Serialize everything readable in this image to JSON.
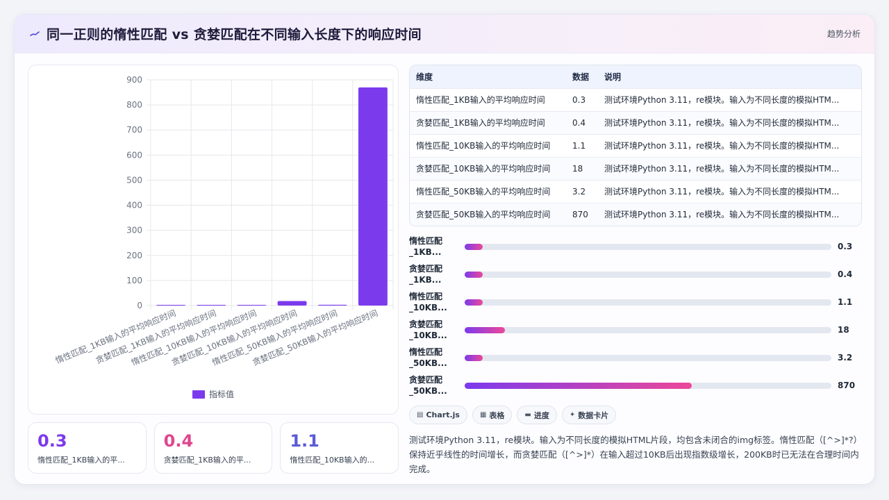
{
  "header": {
    "title": "同一正则的惰性匹配 vs 贪婪匹配在不同输入长度下的响应时间",
    "tag": "趋势分析"
  },
  "colors": {
    "bar": "#7c3aed",
    "accent_purple": "#7c3aed",
    "accent_pink": "#e0468f",
    "accent_indigo": "#5b5bd6"
  },
  "chart_data": {
    "type": "bar",
    "categories": [
      "惰性匹配_1KB输入的平均响应时间",
      "贪婪匹配_1KB输入的平均响应时间",
      "惰性匹配_10KB输入的平均响应时间",
      "贪婪匹配_10KB输入的平均响应时间",
      "惰性匹配_50KB输入的平均响应时间",
      "贪婪匹配_50KB输入的平均响应时间"
    ],
    "series": [
      {
        "name": "指标值",
        "values": [
          0.3,
          0.4,
          1.1,
          18,
          3.2,
          870
        ]
      }
    ],
    "ylim": [
      0,
      900
    ],
    "yticks": [
      0,
      100,
      200,
      300,
      400,
      500,
      600,
      700,
      800,
      900
    ],
    "grid": true,
    "legend": "bottom"
  },
  "table": {
    "headers": [
      "维度",
      "数据",
      "说明"
    ],
    "rows": [
      [
        "惰性匹配_1KB输入的平均响应时间",
        "0.3",
        "测试环境Python 3.11，re模块。输入为不同长度的模拟HTM..."
      ],
      [
        "贪婪匹配_1KB输入的平均响应时间",
        "0.4",
        "测试环境Python 3.11，re模块。输入为不同长度的模拟HTM..."
      ],
      [
        "惰性匹配_10KB输入的平均响应时间",
        "1.1",
        "测试环境Python 3.11，re模块。输入为不同长度的模拟HTM..."
      ],
      [
        "贪婪匹配_10KB输入的平均响应时间",
        "18",
        "测试环境Python 3.11，re模块。输入为不同长度的模拟HTM..."
      ],
      [
        "惰性匹配_50KB输入的平均响应时间",
        "3.2",
        "测试环境Python 3.11，re模块。输入为不同长度的模拟HTM..."
      ],
      [
        "贪婪匹配_50KB输入的平均响应时间",
        "870",
        "测试环境Python 3.11，re模块。输入为不同长度的模拟HTM..."
      ]
    ]
  },
  "progress": [
    {
      "label": "惰性匹配_1KB...",
      "value": "0.3",
      "fraction": 0.05
    },
    {
      "label": "贪婪匹配_1KB...",
      "value": "0.4",
      "fraction": 0.05
    },
    {
      "label": "惰性匹配_10KB...",
      "value": "1.1",
      "fraction": 0.05
    },
    {
      "label": "贪婪匹配_10KB...",
      "value": "18",
      "fraction": 0.11
    },
    {
      "label": "惰性匹配_50KB...",
      "value": "3.2",
      "fraction": 0.05
    },
    {
      "label": "贪婪匹配_50KB...",
      "value": "870",
      "fraction": 0.62
    }
  ],
  "kpis": [
    {
      "value": "0.3",
      "label": "惰性匹配_1KB输入的平...",
      "color": "#7c3aed"
    },
    {
      "value": "0.4",
      "label": "贪婪匹配_1KB输入的平...",
      "color": "#e0468f"
    },
    {
      "value": "1.1",
      "label": "惰性匹配_10KB输入的...",
      "color": "#5b5bd6"
    }
  ],
  "chips": [
    {
      "icon": "chart-icon",
      "glyph": "▤",
      "label": "Chart.js"
    },
    {
      "icon": "table-icon",
      "glyph": "▦",
      "label": "表格"
    },
    {
      "icon": "progress-icon",
      "glyph": "▬",
      "label": "进度"
    },
    {
      "icon": "card-icon",
      "glyph": "✦",
      "label": "数据卡片"
    }
  ],
  "note": "测试环境Python 3.11，re模块。输入为不同长度的模拟HTML片段，均包含未闭合的img标签。惰性匹配（[^>]*?）保持近乎线性的时间增长，而贪婪匹配（[^>]*）在输入超过10KB后出现指数级增长，200KB时已无法在合理时间内完成。"
}
